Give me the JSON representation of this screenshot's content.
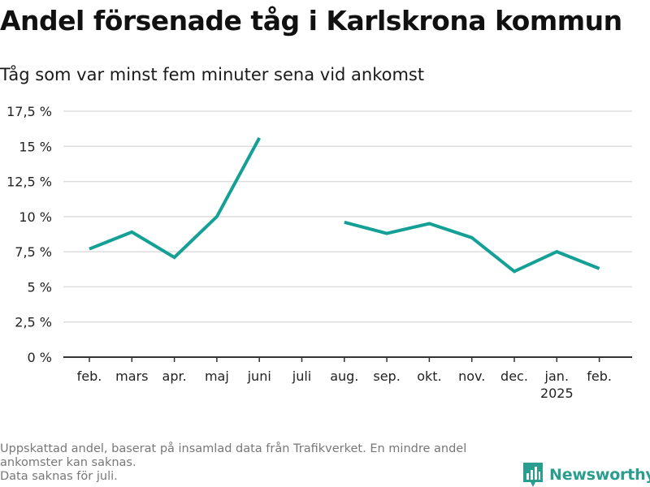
{
  "title": "Andel försenade tåg i Karlskrona kommun",
  "subtitle": "Tåg som var minst fem minuter sena vid ankomst",
  "footnote": {
    "line1": "Uppskattad andel, baserat på insamlad data från Trafikverket. En mindre andel",
    "line2": "ankomster kan saknas.",
    "line3": "Data saknas för juli."
  },
  "brand": {
    "name": "Newsworthy",
    "color": "#2a9d8f"
  },
  "chart_data": {
    "type": "line",
    "categories": [
      "feb.",
      "mars",
      "apr.",
      "maj",
      "juni",
      "juli",
      "aug.",
      "sep.",
      "okt.",
      "nov.",
      "dec.",
      "jan.",
      "feb."
    ],
    "category_sublabels": [
      "",
      "",
      "",
      "",
      "",
      "",
      "",
      "",
      "",
      "",
      "",
      "2025",
      ""
    ],
    "series": [
      {
        "values": [
          7.7,
          8.9,
          7.1,
          10.0,
          15.6,
          null,
          9.6,
          8.8,
          9.5,
          8.5,
          6.1,
          7.5,
          6.3
        ],
        "color": "#15a096"
      }
    ],
    "yticks": [
      0,
      2.5,
      5,
      7.5,
      10,
      12.5,
      15,
      17.5
    ],
    "ytick_labels": [
      "0 %",
      "2,5 %",
      "5 %",
      "7,5 %",
      "10 %",
      "12,5 %",
      "15 %",
      "17,5 %"
    ],
    "ylim": [
      0,
      17.5
    ],
    "grid": true,
    "gridline_color": "#dddddd",
    "axis_color": "#333333"
  }
}
